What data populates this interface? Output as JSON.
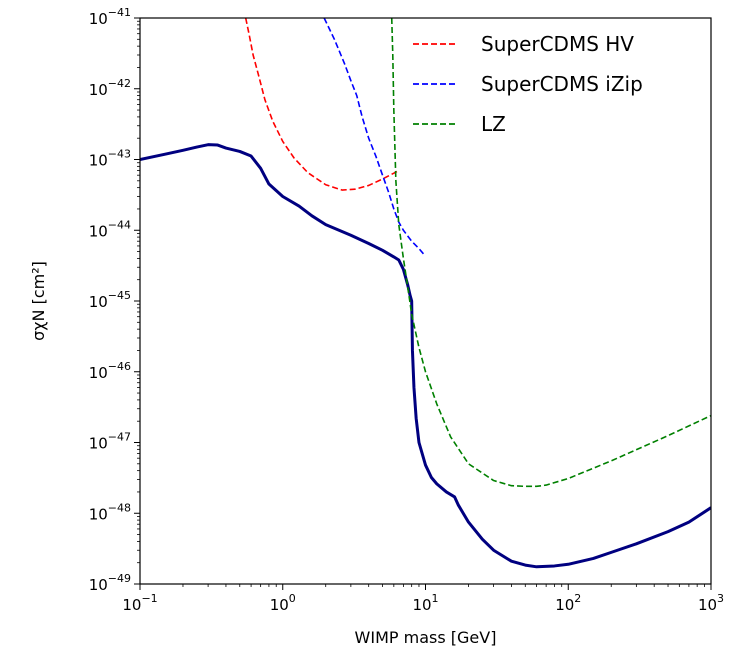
{
  "chart_data": {
    "type": "line",
    "xlabel": "WIMP mass [GeV]",
    "ylabel": "σχN [cm²]",
    "xscale": "log",
    "yscale": "log",
    "xlim": [
      0.1,
      1000
    ],
    "ylim": [
      1e-49,
      1e-41
    ],
    "x_ticks": [
      {
        "value": 0.1,
        "base": "10",
        "exp": "−1"
      },
      {
        "value": 1,
        "base": "10",
        "exp": "0"
      },
      {
        "value": 10,
        "base": "10",
        "exp": "1"
      },
      {
        "value": 100,
        "base": "10",
        "exp": "2"
      },
      {
        "value": 1000,
        "base": "10",
        "exp": "3"
      }
    ],
    "y_ticks": [
      {
        "value": 1e-49,
        "base": "10",
        "exp": "−49"
      },
      {
        "value": 1e-48,
        "base": "10",
        "exp": "−48"
      },
      {
        "value": 1e-47,
        "base": "10",
        "exp": "−47"
      },
      {
        "value": 1e-46,
        "base": "10",
        "exp": "−46"
      },
      {
        "value": 1e-45,
        "base": "10",
        "exp": "−45"
      },
      {
        "value": 1e-44,
        "base": "10",
        "exp": "−44"
      },
      {
        "value": 1e-43,
        "base": "10",
        "exp": "−43"
      },
      {
        "value": 1e-42,
        "base": "10",
        "exp": "−42"
      },
      {
        "value": 1e-41,
        "base": "10",
        "exp": "−41"
      }
    ],
    "legend_position": "top-right",
    "grid": false,
    "series": [
      {
        "style": "solid",
        "color": "#000080",
        "in_legend": false,
        "x": [
          0.1,
          0.15,
          0.2,
          0.25,
          0.3,
          0.35,
          0.4,
          0.5,
          0.6,
          0.7,
          0.8,
          1.0,
          1.3,
          1.6,
          2.0,
          3.0,
          4.0,
          5.0,
          6.0,
          6.5,
          7.0,
          7.5,
          7.8,
          8.0,
          8.1,
          8.3,
          8.6,
          9.0,
          10,
          11,
          12,
          14,
          16,
          17,
          20,
          25,
          30,
          40,
          50,
          60,
          80,
          100,
          150,
          200,
          300,
          500,
          700,
          1000
        ],
        "y": [
          1e-43,
          1.19e-43,
          1.35e-43,
          1.5e-43,
          1.62e-43,
          1.6e-43,
          1.45e-43,
          1.3e-43,
          1.12e-43,
          7.5e-44,
          4.5e-44,
          3e-44,
          2.2e-44,
          1.6e-44,
          1.2e-44,
          8.5e-45,
          6.5e-45,
          5.2e-45,
          4.2e-45,
          3.8e-45,
          2.8e-45,
          1.7e-45,
          1.2e-45,
          1e-45,
          2e-46,
          6e-47,
          2.2e-47,
          1e-47,
          4.8e-48,
          3.2e-48,
          2.6e-48,
          2e-48,
          1.7e-48,
          1.3e-48,
          7.5e-49,
          4.3e-49,
          3e-49,
          2.1e-49,
          1.85e-49,
          1.75e-49,
          1.8e-49,
          1.9e-49,
          2.3e-49,
          2.8e-49,
          3.7e-49,
          5.5e-49,
          7.5e-49,
          1.2e-48
        ]
      },
      {
        "name": "SuperCDMS HV",
        "style": "dashed",
        "color": "#ff0000",
        "x": [
          0.55,
          0.58,
          0.62,
          0.68,
          0.75,
          0.85,
          1.0,
          1.2,
          1.5,
          2.0,
          2.6,
          3.2,
          4.0,
          5.0,
          6.0,
          6.5
        ],
        "y": [
          1e-41,
          6e-42,
          3e-42,
          1.5e-42,
          7e-43,
          3.5e-43,
          1.8e-43,
          1.05e-43,
          6.5e-44,
          4.4e-44,
          3.7e-44,
          3.8e-44,
          4.3e-44,
          5.3e-44,
          6.4e-44,
          7e-44
        ]
      },
      {
        "name": "SuperCDMS iZip",
        "style": "dashed",
        "color": "#0000ff",
        "x": [
          1.95,
          2.3,
          2.7,
          3.0,
          3.3,
          3.6,
          4.0,
          4.5,
          5.0,
          5.5,
          6.0,
          6.5,
          7.0,
          8.0,
          9.0,
          9.8
        ],
        "y": [
          1e-41,
          5e-42,
          2.3e-42,
          1.3e-42,
          8e-43,
          4e-43,
          2e-43,
          1.1e-43,
          6e-44,
          3.5e-44,
          2e-44,
          1.3e-44,
          1e-44,
          7e-45,
          5.5e-45,
          4.5e-45
        ]
      },
      {
        "name": "LZ",
        "style": "dashed",
        "color": "#008000",
        "x": [
          5.8,
          5.9,
          6.0,
          6.2,
          6.5,
          7.0,
          7.5,
          8.0,
          9.0,
          10,
          12,
          15,
          20,
          30,
          40,
          50,
          60,
          70,
          100,
          200,
          500,
          1000
        ],
        "y": [
          1e-41,
          3e-42,
          5e-43,
          5e-44,
          1.2e-44,
          4e-45,
          1.6e-45,
          6.5e-46,
          2.2e-46,
          1e-46,
          3.5e-47,
          1.2e-47,
          5e-48,
          2.9e-48,
          2.45e-48,
          2.4e-48,
          2.4e-48,
          2.5e-48,
          3.1e-48,
          5.5e-48,
          1.25e-47,
          2.4e-47
        ]
      }
    ]
  }
}
